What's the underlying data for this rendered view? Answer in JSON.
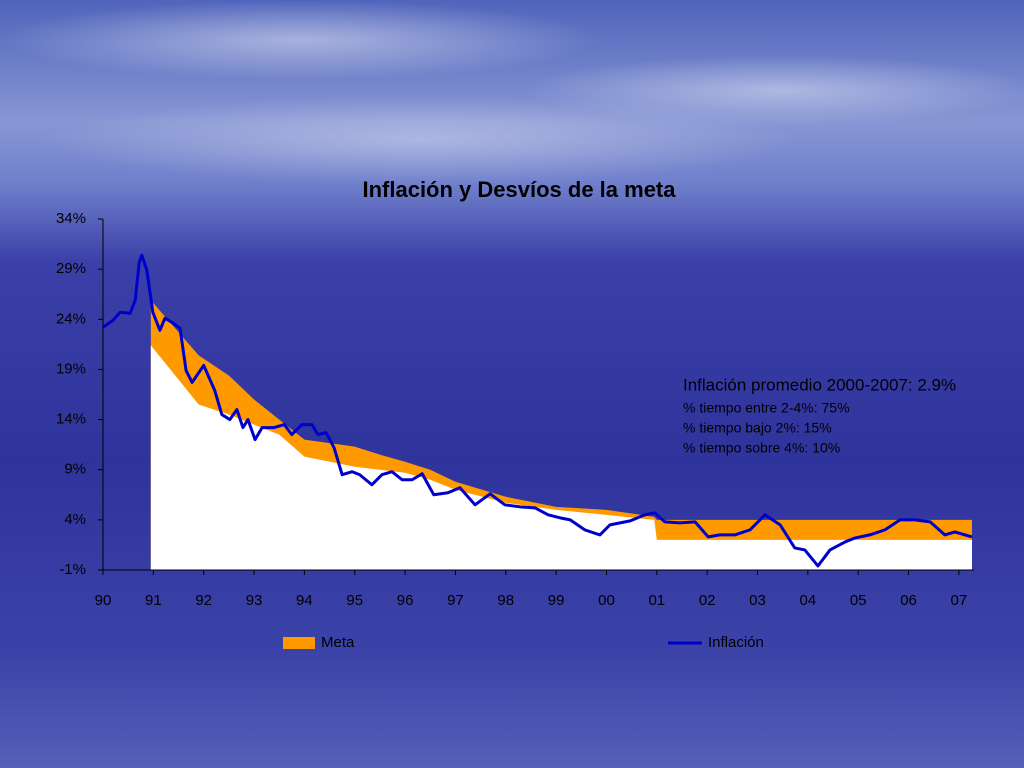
{
  "chart_data": {
    "type": "line",
    "title": "Inflación y Desvíos de la meta",
    "annotations": [
      "Inflación promedio 2000-2007: 2.9%",
      "% tiempo entre 2-4%: 75%",
      "% tiempo bajo 2%: 15%",
      "% tiempo sobre 4%: 10%"
    ],
    "xlim": [
      1990,
      2007.3
    ],
    "xticks": [
      {
        "value": 1990,
        "label": "90"
      },
      {
        "value": 1991,
        "label": "91"
      },
      {
        "value": 1992,
        "label": "92"
      },
      {
        "value": 1993,
        "label": "93"
      },
      {
        "value": 1994,
        "label": "94"
      },
      {
        "value": 1995,
        "label": "95"
      },
      {
        "value": 1996,
        "label": "96"
      },
      {
        "value": 1997,
        "label": "97"
      },
      {
        "value": 1998,
        "label": "98"
      },
      {
        "value": 1999,
        "label": "99"
      },
      {
        "value": 2000,
        "label": "00"
      },
      {
        "value": 2001,
        "label": "01"
      },
      {
        "value": 2002,
        "label": "02"
      },
      {
        "value": 2003,
        "label": "03"
      },
      {
        "value": 2004,
        "label": "04"
      },
      {
        "value": 2005,
        "label": "05"
      },
      {
        "value": 2006,
        "label": "06"
      },
      {
        "value": 2007,
        "label": "07"
      }
    ],
    "ylim": [
      -1,
      34
    ],
    "yticks": [
      {
        "value": -1,
        "label": "-1%"
      },
      {
        "value": 4,
        "label": "4%"
      },
      {
        "value": 9,
        "label": "9%"
      },
      {
        "value": 14,
        "label": "14%"
      },
      {
        "value": 19,
        "label": "19%"
      },
      {
        "value": 24,
        "label": "24%"
      },
      {
        "value": 29,
        "label": "29%"
      },
      {
        "value": 34,
        "label": "34%"
      }
    ],
    "series": [
      {
        "name": "Meta",
        "color": "#ff9900",
        "x": [
          1990.95,
          1991.9,
          1992.5,
          1993,
          1993.5,
          1994,
          1995,
          1995.5,
          1996,
          1996.5,
          1997,
          1998,
          1999,
          2000,
          2000.95,
          2001.0,
          2007.26
        ],
        "lower": [
          21.4,
          15.5,
          14.5,
          13.5,
          12.5,
          10.3,
          9.3,
          9.0,
          8.7,
          8.0,
          7.0,
          5.7,
          5.0,
          4.5,
          4.0,
          2,
          2
        ],
        "upper": [
          25.9,
          20.4,
          18.4,
          16.0,
          14.0,
          12.0,
          11.3,
          10.5,
          9.8,
          9.0,
          7.8,
          6.3,
          5.3,
          5.0,
          4.3,
          4,
          4
        ]
      },
      {
        "name": "Inflación",
        "color": "#0000cc",
        "x": [
          1990.0,
          1990.2,
          1990.34,
          1990.54,
          1990.64,
          1990.72,
          1990.77,
          1990.87,
          1990.99,
          1991.13,
          1991.23,
          1991.37,
          1991.53,
          1991.65,
          1991.77,
          1992.0,
          1992.22,
          1992.36,
          1992.52,
          1992.66,
          1992.78,
          1992.88,
          1993.02,
          1993.16,
          1993.4,
          1993.6,
          1993.75,
          1993.95,
          1994.15,
          1994.27,
          1994.43,
          1994.59,
          1994.75,
          1994.95,
          1995.1,
          1995.34,
          1995.54,
          1995.74,
          1995.94,
          1996.14,
          1996.34,
          1996.57,
          1996.85,
          1997.09,
          1997.39,
          1997.69,
          1997.98,
          1998.28,
          1998.58,
          1998.84,
          1999.08,
          1999.28,
          1999.57,
          1999.87,
          2000.07,
          2000.47,
          2000.76,
          2000.96,
          2001.16,
          2001.46,
          2001.76,
          2002.02,
          2002.25,
          2002.55,
          2002.85,
          2003.15,
          2003.45,
          2003.74,
          2003.94,
          2004.2,
          2004.44,
          2004.74,
          2004.94,
          2005.23,
          2005.53,
          2005.83,
          2006.13,
          2006.43,
          2006.72,
          2006.92,
          2007.26
        ],
        "values": [
          23.2,
          23.9,
          24.7,
          24.6,
          25.9,
          29.7,
          30.4,
          28.9,
          24.7,
          22.9,
          24.1,
          23.7,
          23.1,
          18.9,
          17.7,
          19.4,
          16.9,
          14.5,
          14.0,
          15.0,
          13.2,
          14.0,
          12.0,
          13.2,
          13.2,
          13.5,
          12.5,
          13.5,
          13.5,
          12.5,
          12.7,
          11.2,
          8.5,
          8.8,
          8.5,
          7.5,
          8.5,
          8.8,
          8.0,
          8.0,
          8.6,
          6.5,
          6.7,
          7.2,
          5.5,
          6.6,
          5.5,
          5.3,
          5.2,
          4.5,
          4.2,
          4.0,
          3.0,
          2.5,
          3.5,
          3.9,
          4.5,
          4.7,
          3.8,
          3.7,
          3.8,
          2.3,
          2.5,
          2.5,
          3.0,
          4.5,
          3.5,
          1.2,
          1.0,
          -0.6,
          1.0,
          1.8,
          2.2,
          2.5,
          3.0,
          4.0,
          4.0,
          3.8,
          2.5,
          2.8,
          2.3
        ]
      }
    ]
  }
}
